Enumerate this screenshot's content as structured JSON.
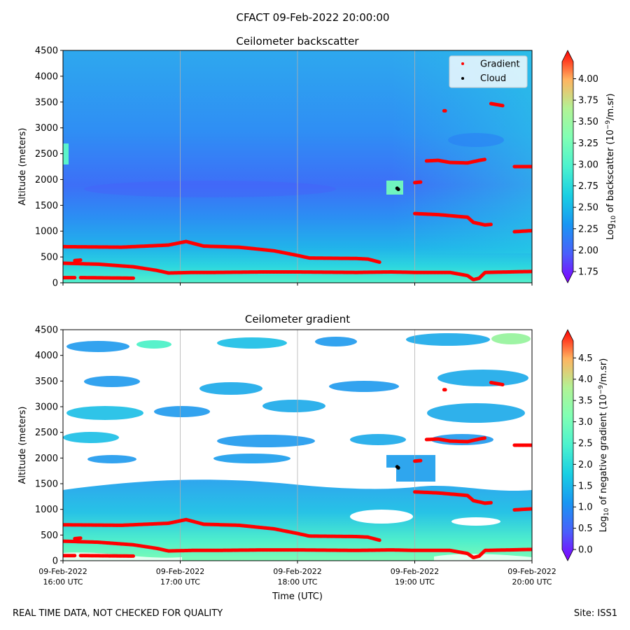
{
  "figure": {
    "suptitle": "CFACT 09-Feb-2022 20:00:00",
    "footer_left": "REAL TIME DATA, NOT CHECKED FOR QUALITY",
    "footer_right": "Site: ISS1"
  },
  "chart_data": [
    {
      "type": "heatmap",
      "title": "Ceilometer backscatter",
      "xlabel": "",
      "ylabel": "Altitude (meters)",
      "ylim": [
        0,
        4500
      ],
      "yticks": [
        0,
        500,
        1000,
        1500,
        2000,
        2500,
        3000,
        3500,
        4000,
        4500
      ],
      "colorbar": {
        "label_prefix": "Log",
        "label_sub": "10",
        "label_mid": " of backscatter (10",
        "label_sup": "−9",
        "label_suffix": "/m.sr)",
        "ticks": [
          "1.75",
          "2.00",
          "2.25",
          "2.50",
          "2.75",
          "3.00",
          "3.25",
          "3.50",
          "3.75",
          "4.00"
        ],
        "range": [
          1.75,
          4.2
        ]
      },
      "legend": {
        "position": "top-right",
        "entries": [
          {
            "label": "Gradient",
            "color": "#ff0000"
          },
          {
            "label": "Cloud",
            "color": "#000000"
          }
        ]
      }
    },
    {
      "type": "heatmap",
      "title": "Ceilometer gradient",
      "xlabel": "Time (UTC)",
      "ylabel": "Altitude (meters)",
      "ylim": [
        0,
        4500
      ],
      "yticks": [
        0,
        500,
        1000,
        1500,
        2000,
        2500,
        3000,
        3500,
        4000,
        4500
      ],
      "colorbar": {
        "label_prefix": "Log",
        "label_sub": "10",
        "label_mid": " of negative gradient (10",
        "label_sup": "−9",
        "label_suffix": "/m.sr)",
        "ticks": [
          "0.0",
          "0.5",
          "1.0",
          "1.5",
          "2.0",
          "2.5",
          "3.0",
          "3.5",
          "4.0",
          "4.5"
        ],
        "range": [
          0.0,
          4.9
        ]
      }
    }
  ],
  "x_axis": {
    "range_hours": [
      16,
      20
    ],
    "ticks": [
      {
        "hour": 16,
        "date": "09-Feb-2022",
        "time": "16:00 UTC"
      },
      {
        "hour": 17,
        "date": "09-Feb-2022",
        "time": "17:00 UTC"
      },
      {
        "hour": 18,
        "date": "09-Feb-2022",
        "time": "18:00 UTC"
      },
      {
        "hour": 19,
        "date": "09-Feb-2022",
        "time": "19:00 UTC"
      },
      {
        "hour": 20,
        "date": "09-Feb-2022",
        "time": "20:00 UTC"
      }
    ]
  },
  "gradient_layers": [
    {
      "name": "boundary-layer-top",
      "points": [
        [
          16.0,
          700
        ],
        [
          16.5,
          690
        ],
        [
          16.9,
          730
        ],
        [
          17.05,
          800
        ],
        [
          17.2,
          710
        ],
        [
          17.5,
          690
        ],
        [
          17.8,
          620
        ],
        [
          18.0,
          530
        ],
        [
          18.1,
          480
        ],
        [
          18.5,
          470
        ],
        [
          18.6,
          460
        ],
        [
          18.7,
          400
        ]
      ]
    },
    {
      "name": "surface-layer",
      "points": [
        [
          16.0,
          380
        ],
        [
          16.3,
          360
        ],
        [
          16.6,
          310
        ],
        [
          16.8,
          240
        ],
        [
          16.9,
          190
        ],
        [
          17.1,
          200
        ],
        [
          17.3,
          200
        ],
        [
          17.7,
          210
        ],
        [
          18.0,
          210
        ],
        [
          18.5,
          200
        ],
        [
          18.8,
          210
        ],
        [
          19.0,
          200
        ],
        [
          19.3,
          200
        ],
        [
          19.45,
          140
        ],
        [
          19.5,
          60
        ],
        [
          19.55,
          90
        ],
        [
          19.6,
          200
        ],
        [
          19.8,
          210
        ],
        [
          20.0,
          220
        ]
      ]
    },
    {
      "name": "near-surface",
      "points": [
        [
          16.0,
          100
        ],
        [
          16.1,
          100
        ]
      ]
    },
    {
      "name": "residual-layer-1",
      "points": [
        [
          16.15,
          100
        ],
        [
          16.6,
          90
        ]
      ]
    },
    {
      "name": "residual-layer-2",
      "points": [
        [
          16.1,
          430
        ],
        [
          16.15,
          440
        ]
      ]
    },
    {
      "name": "evening-layer-a",
      "points": [
        [
          19.0,
          1340
        ],
        [
          19.2,
          1320
        ],
        [
          19.4,
          1280
        ],
        [
          19.45,
          1270
        ],
        [
          19.5,
          1170
        ],
        [
          19.6,
          1120
        ],
        [
          19.65,
          1130
        ]
      ]
    },
    {
      "name": "evening-layer-b",
      "points": [
        [
          19.0,
          1940
        ],
        [
          19.05,
          1950
        ]
      ]
    },
    {
      "name": "evening-layer-c",
      "points": [
        [
          19.1,
          2360
        ],
        [
          19.2,
          2370
        ],
        [
          19.3,
          2330
        ],
        [
          19.45,
          2320
        ],
        [
          19.55,
          2370
        ],
        [
          19.6,
          2390
        ]
      ]
    },
    {
      "name": "evening-layer-d",
      "points": [
        [
          19.65,
          3470
        ],
        [
          19.75,
          3430
        ]
      ]
    },
    {
      "name": "evening-layer-e",
      "points": [
        [
          19.85,
          2250
        ],
        [
          20.0,
          2250
        ]
      ]
    },
    {
      "name": "evening-layer-f",
      "points": [
        [
          19.85,
          990
        ],
        [
          20.0,
          1010
        ]
      ]
    },
    {
      "name": "isolated-point",
      "points": [
        [
          19.25,
          3330
        ],
        [
          19.26,
          3330
        ]
      ]
    }
  ],
  "cloud_points": [
    [
      18.85,
      1830
    ],
    [
      18.86,
      1810
    ]
  ]
}
